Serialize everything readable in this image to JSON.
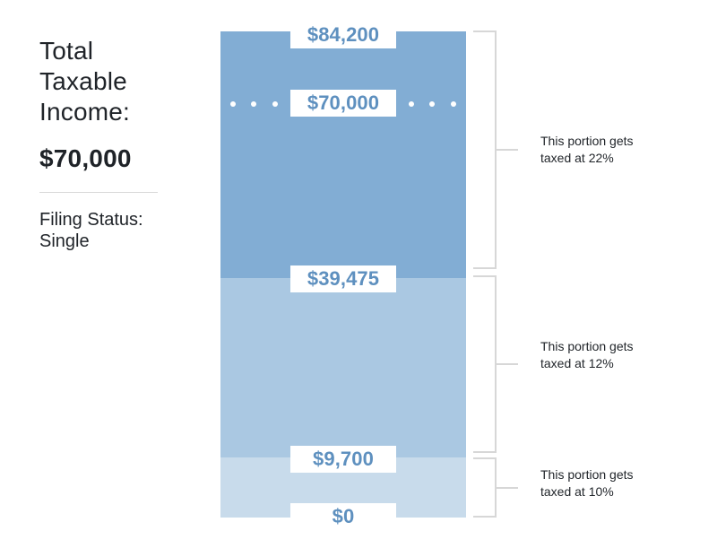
{
  "summary": {
    "title_lines": [
      "Total",
      "Taxable",
      "Income:"
    ],
    "income_value": "$70,000",
    "filing_status_label": "Filing Status:",
    "filing_status_value": "Single"
  },
  "brackets": [
    {
      "rate": "22%",
      "top_value": "$84,200",
      "current_income_value": "$70,000",
      "note_lines": [
        "This portion gets",
        "taxed at 22%"
      ],
      "color": "#82add4"
    },
    {
      "rate": "12%",
      "top_value": "$39,475",
      "note_lines": [
        "This portion gets",
        "taxed at 12%"
      ],
      "color": "#aac8e2"
    },
    {
      "rate": "10%",
      "top_value": "$9,700",
      "bottom_value": "$0",
      "note_lines": [
        "This portion gets",
        "taxed at 10%"
      ],
      "color": "#c8dbeb"
    }
  ],
  "colors": {
    "label_text": "#5e90bf",
    "brace": "#d7d7d7",
    "body_text": "#1f2328"
  }
}
